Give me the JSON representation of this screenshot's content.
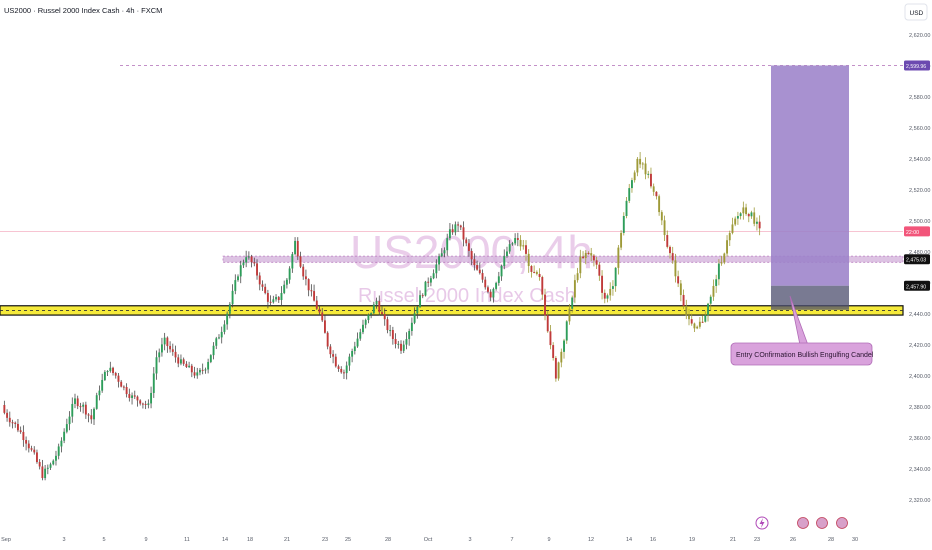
{
  "header": {
    "symbol_title": "US2000 · Russel 2000 Index Cash · 4h · FXCM",
    "currency": "USD"
  },
  "watermark": {
    "ticker": "US2000, 4h",
    "name": "Russel 2000 Index Cash"
  },
  "chart_data": {
    "type": "candlestick",
    "y_axis": {
      "min": 2312,
      "max": 2628,
      "ticks": [
        2320,
        2340,
        2360,
        2380,
        2400,
        2420,
        2440,
        2460,
        2480,
        2500,
        2520,
        2540,
        2560,
        2580,
        2600,
        2620
      ],
      "tick_labels": [
        "2,320.00",
        "2,340.00",
        "2,360.00",
        "2,380.00",
        "2,400.00",
        "2,420.00",
        "2,440.00",
        "2,460.00",
        "2,480.00",
        "2,500.00",
        "2,520.00",
        "2,540.00",
        "2,560.00",
        "2,580.00",
        "2,600.00",
        "2,620.00"
      ]
    },
    "x_axis": {
      "labels": [
        "Sep",
        "3",
        "5",
        "9",
        "11",
        "14",
        "18",
        "21",
        "23",
        "25",
        "28",
        "Oct",
        "3",
        "7",
        "9",
        "12",
        "14",
        "16",
        "19",
        "21",
        "23",
        "26",
        "28",
        "30"
      ]
    },
    "price_labels": {
      "target": "2,599.96",
      "current": "22:00",
      "resistance": "2,475.03",
      "entry": "2,457.90"
    },
    "levels": {
      "target": 2599.96,
      "current": 2493,
      "resistance": 2475.03,
      "entry": 2457.9,
      "support_zone": [
        2439,
        2445
      ]
    },
    "annotation": "Entry COnfirmation Bullish Engulfing Candel",
    "key_closes": [
      2378,
      2372,
      2366,
      2358,
      2348,
      2336,
      2342,
      2352,
      2370,
      2384,
      2380,
      2372,
      2392,
      2405,
      2400,
      2392,
      2386,
      2384,
      2380,
      2412,
      2422,
      2414,
      2408,
      2404,
      2400,
      2406,
      2418,
      2430,
      2446,
      2466,
      2478,
      2470,
      2456,
      2446,
      2450,
      2462,
      2486,
      2466,
      2452,
      2440,
      2420,
      2408,
      2402,
      2416,
      2428,
      2438,
      2448,
      2434,
      2424,
      2418,
      2430,
      2446,
      2458,
      2468,
      2478,
      2492,
      2498,
      2484,
      2470,
      2462,
      2452,
      2466,
      2480,
      2488,
      2482,
      2468,
      2462,
      2430,
      2400,
      2424,
      2452,
      2476,
      2480,
      2470,
      2448,
      2460,
      2494,
      2520,
      2540,
      2532,
      2520,
      2500,
      2478,
      2460,
      2440,
      2428,
      2436,
      2450,
      2470,
      2486,
      2500,
      2508,
      2503,
      2495
    ],
    "colors": {
      "bull": "#2e9d5a",
      "bear": "#c03a3a",
      "wick_recent": "#9e9a38",
      "target_zone": "#9c82c9",
      "stop_zone": "#4c4d6e",
      "support_zone": "#f5ea3b",
      "resistance_band": "#d8b9df",
      "watermark": "#d9a6d9",
      "target_label": "#6c4ab0",
      "current_label": "#f2557a"
    }
  }
}
